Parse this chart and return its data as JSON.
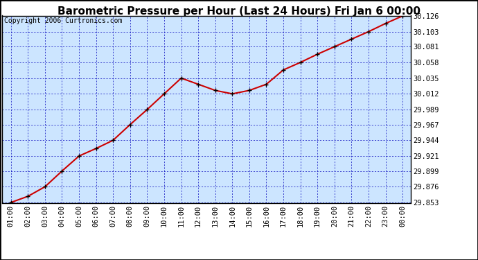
{
  "title": "Barometric Pressure per Hour (Last 24 Hours) Fri Jan 6 00:00",
  "copyright": "Copyright 2006 Curtronics.com",
  "x_labels": [
    "01:00",
    "02:00",
    "03:00",
    "04:00",
    "05:00",
    "06:00",
    "07:00",
    "08:00",
    "09:00",
    "10:00",
    "11:00",
    "12:00",
    "13:00",
    "14:00",
    "15:00",
    "16:00",
    "17:00",
    "18:00",
    "19:00",
    "20:00",
    "21:00",
    "22:00",
    "23:00",
    "00:00"
  ],
  "y_values": [
    29.853,
    29.862,
    29.876,
    29.899,
    29.921,
    29.932,
    29.944,
    29.967,
    29.989,
    30.012,
    30.035,
    30.026,
    30.017,
    30.012,
    30.017,
    30.026,
    30.047,
    30.058,
    30.07,
    30.081,
    30.092,
    30.103,
    30.115,
    30.126
  ],
  "yticks": [
    29.853,
    29.876,
    29.899,
    29.921,
    29.944,
    29.967,
    29.989,
    30.012,
    30.035,
    30.058,
    30.081,
    30.103,
    30.126
  ],
  "y_min": 29.853,
  "y_max": 30.126,
  "line_color": "#cc0000",
  "marker_color": "#000000",
  "bg_color": "#cce5ff",
  "grid_color": "#0000bb",
  "title_fontsize": 11,
  "copyright_fontsize": 7,
  "tick_fontsize": 7.5
}
